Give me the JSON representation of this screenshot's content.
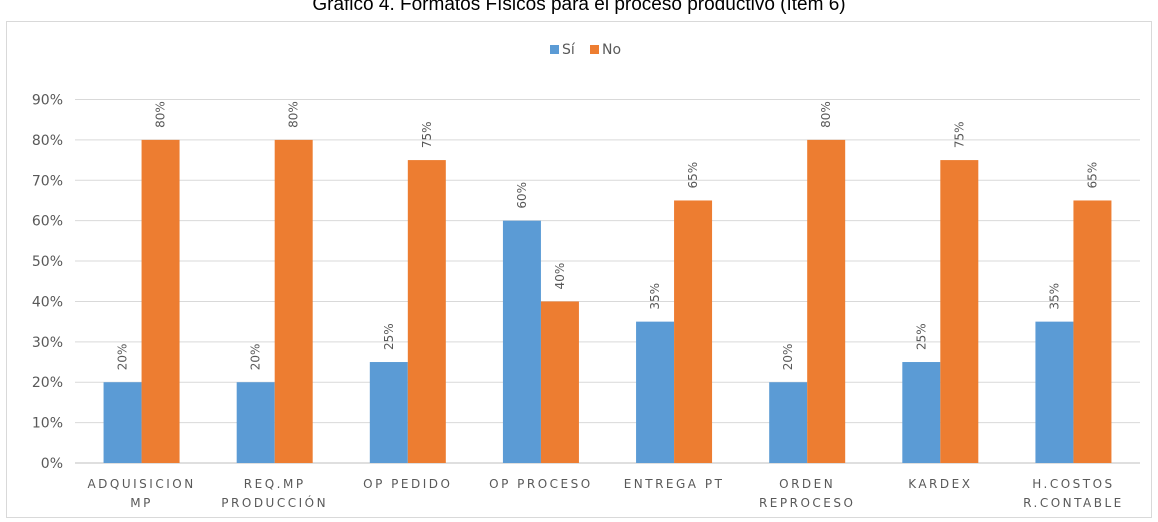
{
  "chart_data": {
    "type": "bar",
    "title": "Gráfico 4. Formatos Físicos para el proceso productivo (ítem 6)",
    "categories": [
      [
        "ADQUISICION",
        "MP"
      ],
      [
        "REQ.MP",
        "PRODUCCIÓN"
      ],
      [
        "OP PEDIDO"
      ],
      [
        "OP PROCESO"
      ],
      [
        "ENTREGA PT"
      ],
      [
        "ORDEN",
        "REPROCESO"
      ],
      [
        "KARDEX"
      ],
      [
        "H.COSTOS",
        "R.CONTABLE"
      ]
    ],
    "series": [
      {
        "name": "Sí",
        "color": "#5b9bd5",
        "values": [
          20,
          20,
          25,
          60,
          35,
          20,
          25,
          35
        ],
        "labels": [
          "20%",
          "20%",
          "25%",
          "60%",
          "35%",
          "20%",
          "25%",
          "35%"
        ]
      },
      {
        "name": "No",
        "color": "#ed7d31",
        "values": [
          80,
          80,
          75,
          40,
          65,
          80,
          75,
          65
        ],
        "labels": [
          "80%",
          "80%",
          "75%",
          "40%",
          "65%",
          "80%",
          "75%",
          "65%"
        ]
      }
    ],
    "yticks": [
      "0%",
      "10%",
      "20%",
      "30%",
      "40%",
      "50%",
      "60%",
      "70%",
      "80%",
      "90%"
    ],
    "ylim": [
      0,
      90
    ],
    "grid": true,
    "legend": "top-center"
  }
}
